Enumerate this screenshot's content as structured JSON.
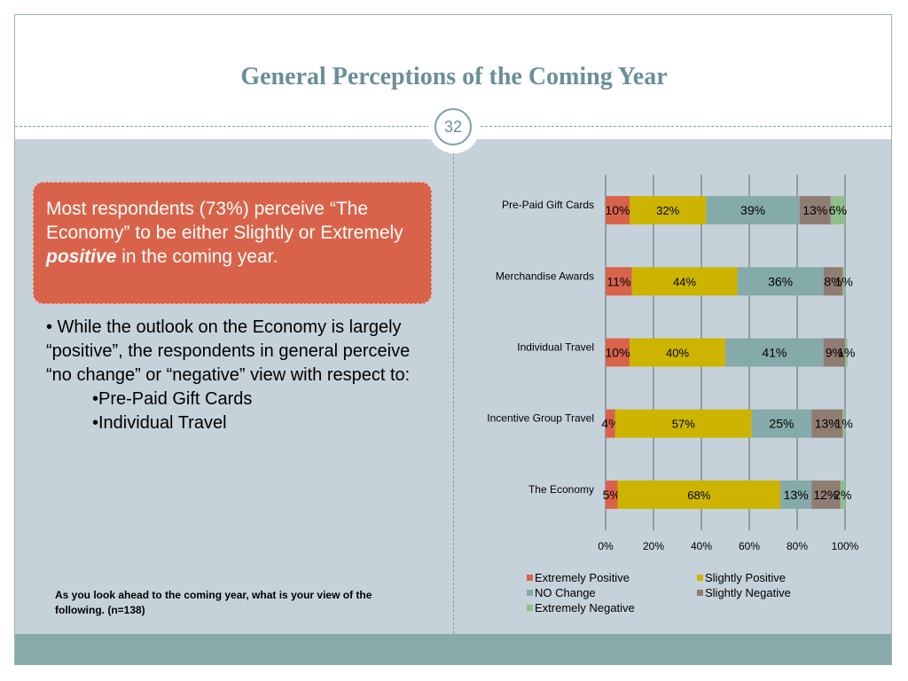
{
  "slide": {
    "title": "General Perceptions of the Coming Year",
    "page_number": "32",
    "callout": {
      "pre": "Most respondents (73%) perceive “The Economy” to be either Slightly or Extremely ",
      "emph": "positive",
      "post": " in the coming year."
    },
    "bullets": {
      "main": "• While the outlook on the Economy is largely “positive”, the respondents in general perceive “no change” or “negative” view with respect to:",
      "sub1": "•Pre-Paid Gift Cards",
      "sub2": "•Individual Travel"
    },
    "question": "As you look ahead to the coming year, what is your view of the following. (n=138)"
  },
  "colors": {
    "extremely_positive": "#d9634a",
    "slightly_positive": "#ccb400",
    "no_change": "#84aaa9",
    "slightly_negative": "#8f7c72",
    "extremely_negative": "#8fbf8a",
    "content_bg": "#c6d2d9",
    "accent_title": "#6a8f99"
  },
  "chart_data": {
    "type": "bar",
    "orientation": "horizontal",
    "stacked": true,
    "categories": [
      "Pre-Paid Gift Cards",
      "Merchandise Awards",
      "Individual Travel",
      "Incentive Group Travel",
      "The Economy"
    ],
    "series": [
      {
        "name": "Extremely Positive",
        "values": [
          10,
          11,
          10,
          4,
          5
        ],
        "labels": [
          "10%",
          "11%",
          "10%",
          "4%",
          "5%"
        ]
      },
      {
        "name": "Slightly Positive",
        "values": [
          32,
          44,
          40,
          57,
          68
        ],
        "labels": [
          "32%",
          "44%",
          "40%",
          "57%",
          "68%"
        ]
      },
      {
        "name": "NO Change",
        "values": [
          39,
          36,
          41,
          25,
          13
        ],
        "labels": [
          "39%",
          "36%",
          "41%",
          "25%",
          "13%"
        ]
      },
      {
        "name": "Slightly Negative",
        "values": [
          13,
          8,
          9,
          13,
          12
        ],
        "labels": [
          "13%",
          "8%",
          "9%",
          "13%",
          "12%"
        ]
      },
      {
        "name": "Extremely Negative",
        "values": [
          6,
          1,
          1,
          1,
          2
        ],
        "labels": [
          "6%",
          "1%",
          "1%",
          "1%",
          "2%"
        ]
      }
    ],
    "xticks": [
      "0%",
      "20%",
      "40%",
      "60%",
      "80%",
      "100%"
    ],
    "xlim": [
      0,
      100
    ],
    "grid": true,
    "legend": "bottom"
  }
}
